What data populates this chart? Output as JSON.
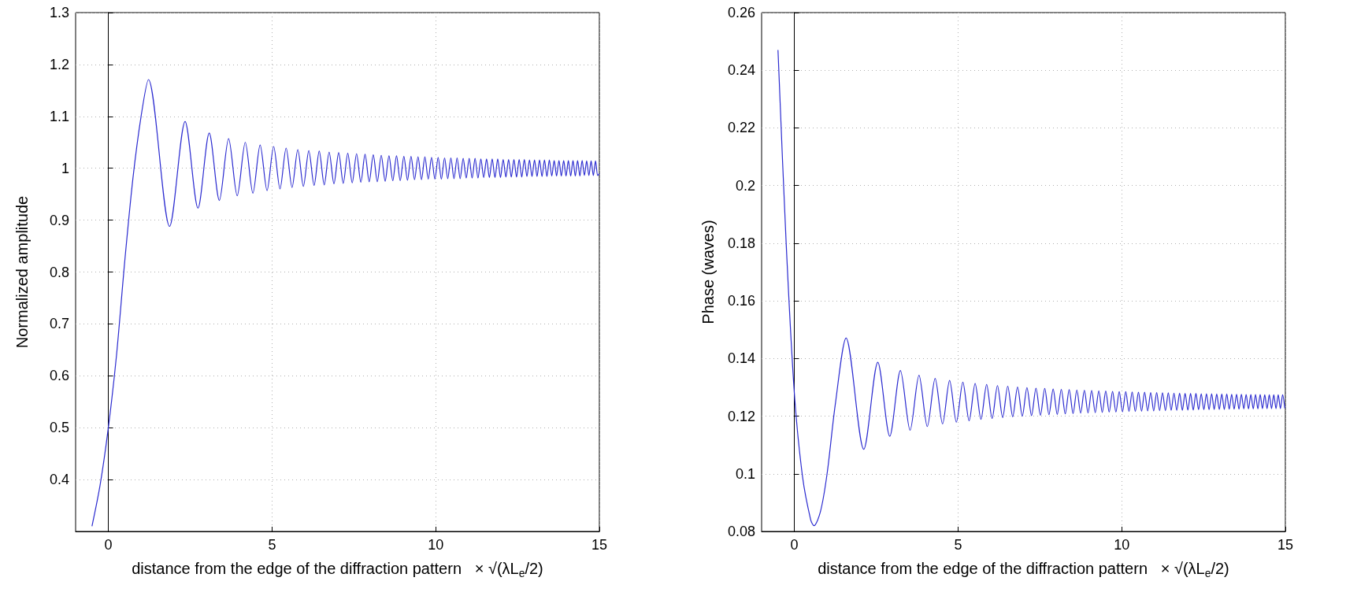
{
  "chart_data": [
    {
      "type": "line",
      "xlabel": "distance from the edge of the diffraction pattern   × √(λL$_{e}$/2)",
      "ylabel": "Normalized amplitude",
      "xlim": [
        -1,
        15
      ],
      "xticks": [
        0,
        5,
        10,
        15
      ],
      "ylim": [
        0.3,
        1.3
      ],
      "yticks": [
        0.4,
        0.5,
        0.6,
        0.7,
        0.8,
        0.9,
        1,
        1.1,
        1.2,
        1.3
      ],
      "grid": true,
      "x": [
        -0.5,
        -0.25,
        0,
        0.25,
        0.5,
        0.75,
        1.0,
        1.225,
        1.871,
        2.345,
        2.739,
        3.082,
        3.391,
        3.674,
        3.937,
        4.183,
        4.416,
        4.637,
        4.848,
        5.05,
        5.244,
        5.431,
        5.612,
        5.788,
        5.958,
        6.124,
        6.285,
        6.442,
        6.595,
        6.745,
        6.892,
        7.036,
        7.176,
        7.314,
        7.45,
        7.583,
        7.714,
        7.842,
        7.969,
        8.093,
        8.216,
        8.337,
        8.456,
        8.573,
        8.689,
        8.803,
        8.916,
        9.028,
        9.138,
        9.247,
        9.354,
        9.46,
        9.566,
        9.67,
        9.772,
        9.874,
        9.975,
        10.075,
        10.173,
        10.271,
        10.368,
        10.464,
        10.559,
        10.654,
        10.747,
        10.84,
        10.932,
        11.023,
        11.113,
        11.203,
        11.292,
        11.38,
        11.467,
        11.554,
        11.64,
        11.726,
        11.811,
        11.895,
        11.979,
        12.062,
        12.145,
        12.227,
        12.309,
        12.39,
        12.47,
        12.55,
        12.629,
        12.708,
        12.787,
        12.865,
        12.942,
        13.019,
        13.096,
        13.172,
        13.248,
        13.323,
        13.398,
        13.472,
        13.546,
        13.62,
        13.693,
        13.766,
        13.838,
        13.91,
        13.982,
        14.053,
        14.124,
        14.195,
        14.265,
        14.335,
        14.405,
        14.474,
        14.543,
        14.612,
        14.68,
        14.748,
        14.816,
        14.883,
        14.95,
        15
      ],
      "series": [
        {
          "color": "#2b2bd0",
          "values": [
            0.31,
            0.39,
            0.5,
            0.64,
            0.82,
            0.98,
            1.1,
            1.171,
            0.888,
            1.09,
            0.923,
            1.068,
            0.938,
            1.057,
            0.947,
            1.05,
            0.952,
            1.045,
            0.957,
            1.042,
            0.96,
            1.039,
            0.963,
            1.036,
            0.965,
            1.034,
            0.967,
            1.033,
            0.968,
            1.031,
            0.97,
            1.03,
            0.971,
            1.029,
            0.972,
            1.028,
            0.973,
            1.027,
            0.974,
            1.026,
            0.974,
            1.025,
            0.975,
            1.024,
            0.976,
            1.024,
            0.976,
            1.023,
            0.977,
            1.023,
            0.978,
            1.022,
            0.978,
            1.022,
            0.979,
            1.021,
            0.979,
            1.021,
            0.979,
            1.02,
            0.98,
            1.02,
            0.98,
            1.02,
            0.98,
            1.019,
            0.981,
            1.019,
            0.981,
            1.019,
            0.981,
            1.018,
            0.982,
            1.018,
            0.982,
            1.018,
            0.982,
            1.018,
            0.982,
            1.017,
            0.983,
            1.017,
            0.983,
            1.017,
            0.983,
            1.017,
            0.983,
            1.017,
            0.984,
            1.016,
            0.984,
            1.016,
            0.984,
            1.016,
            0.984,
            1.016,
            0.984,
            1.016,
            0.985,
            1.015,
            0.985,
            1.015,
            0.985,
            1.015,
            0.985,
            1.015,
            0.985,
            1.015,
            0.985,
            1.015,
            0.985,
            1.015,
            0.986,
            1.014,
            0.986,
            1.014,
            0.986,
            1.014,
            0.986,
            0.99
          ]
        }
      ]
    },
    {
      "type": "line",
      "xlabel": "distance from the edge of the diffraction pattern   × √(λL$_{e}$/2)",
      "ylabel": "Phase (waves)",
      "xlim": [
        -1,
        15
      ],
      "xticks": [
        0,
        5,
        10,
        15
      ],
      "ylim": [
        0.08,
        0.26
      ],
      "yticks": [
        0.08,
        0.1,
        0.12,
        0.14,
        0.16,
        0.18,
        0.2,
        0.22,
        0.24,
        0.26
      ],
      "grid": true,
      "x": [
        -0.5,
        -0.25,
        0,
        0.25,
        0.5,
        0.6,
        0.8,
        1.0,
        1.25,
        1.581,
        2.121,
        2.55,
        2.915,
        3.24,
        3.536,
        3.808,
        4.062,
        4.301,
        4.528,
        4.743,
        4.95,
        5.148,
        5.339,
        5.523,
        5.701,
        5.874,
        6.042,
        6.205,
        6.364,
        6.519,
        6.671,
        6.819,
        6.964,
        7.106,
        7.246,
        7.382,
        7.517,
        7.649,
        7.778,
        7.906,
        8.031,
        8.155,
        8.276,
        8.396,
        8.515,
        8.631,
        8.746,
        8.86,
        8.972,
        9.083,
        9.192,
        9.301,
        9.407,
        9.513,
        9.618,
        9.721,
        9.823,
        9.925,
        10.025,
        10.124,
        10.223,
        10.32,
        10.416,
        10.512,
        10.607,
        10.7,
        10.794,
        10.886,
        10.977,
        11.068,
        11.158,
        11.247,
        11.336,
        11.424,
        11.511,
        11.597,
        11.683,
        11.769,
        11.853,
        11.937,
        12.021,
        12.104,
        12.186,
        12.268,
        12.349,
        12.43,
        12.51,
        12.59,
        12.669,
        12.748,
        12.826,
        12.903,
        12.981,
        13.058,
        13.134,
        13.21,
        13.285,
        13.36,
        13.435,
        13.509,
        13.583,
        13.657,
        13.73,
        13.802,
        13.874,
        13.946,
        14.018,
        14.089,
        14.16,
        14.23,
        14.3,
        14.37,
        14.44,
        14.509,
        14.577,
        14.646,
        14.714,
        14.782,
        14.849,
        14.916,
        14.983
      ],
      "series": [
        {
          "color": "#2b2bd0",
          "values": [
            0.247,
            0.18,
            0.128,
            0.099,
            0.084,
            0.082,
            0.087,
            0.1,
            0.124,
            0.1471,
            0.1085,
            0.1387,
            0.113,
            0.1358,
            0.1151,
            0.1342,
            0.1164,
            0.1331,
            0.1173,
            0.1324,
            0.1179,
            0.1318,
            0.1184,
            0.1313,
            0.1189,
            0.131,
            0.1192,
            0.1306,
            0.1195,
            0.1304,
            0.1198,
            0.1301,
            0.12,
            0.1299,
            0.1202,
            0.1297,
            0.1203,
            0.1296,
            0.1205,
            0.1294,
            0.1206,
            0.1293,
            0.1208,
            0.1292,
            0.1209,
            0.1291,
            0.121,
            0.129,
            0.1211,
            0.1289,
            0.1212,
            0.1288,
            0.1213,
            0.1287,
            0.1214,
            0.1286,
            0.1214,
            0.1285,
            0.1215,
            0.1285,
            0.1216,
            0.1284,
            0.1216,
            0.1283,
            0.1217,
            0.1283,
            0.1218,
            0.1282,
            0.1218,
            0.1282,
            0.1219,
            0.1281,
            0.1219,
            0.1281,
            0.122,
            0.128,
            0.122,
            0.128,
            0.122,
            0.1279,
            0.1221,
            0.1279,
            0.1221,
            0.1279,
            0.1222,
            0.1278,
            0.1222,
            0.1278,
            0.1222,
            0.1278,
            0.1223,
            0.1277,
            0.1223,
            0.1277,
            0.1223,
            0.1277,
            0.1224,
            0.1276,
            0.1224,
            0.1276,
            0.1224,
            0.1276,
            0.1225,
            0.1275,
            0.1225,
            0.1275,
            0.1225,
            0.1275,
            0.1225,
            0.1275,
            0.1226,
            0.1274,
            0.1226,
            0.1274,
            0.1226,
            0.1274,
            0.1226,
            0.1274,
            0.1226,
            0.1274,
            0.1227
          ]
        }
      ]
    }
  ]
}
